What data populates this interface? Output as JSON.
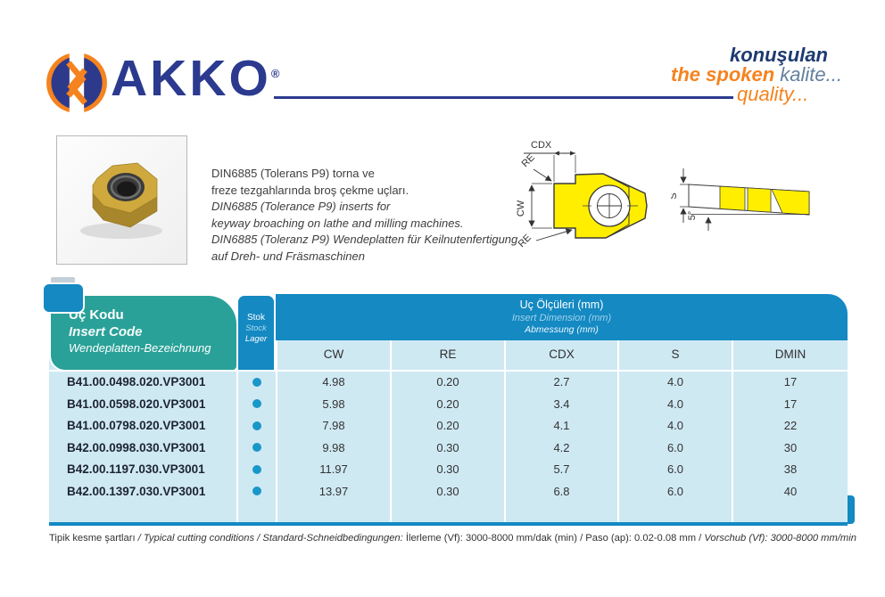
{
  "brand": {
    "name": "AKKO",
    "registered": "®",
    "tagline_tr": "konuşulan",
    "tagline_en_bold": "the spoken",
    "tagline_tr2": "kalite...",
    "tagline_en2": "quality..."
  },
  "description": {
    "lines": [
      {
        "text": "DIN6885 (Tolerans P9) torna ve",
        "style": "regular"
      },
      {
        "text": "freze tezgahlarında broş çekme uçları.",
        "style": "regular"
      },
      {
        "text": "DIN6885 (Tolerance P9) inserts for",
        "style": "italic"
      },
      {
        "text": "keyway broaching on lathe and milling machines.",
        "style": "italic"
      },
      {
        "text": "DIN6885 (Toleranz P9) Wendeplatten für Keilnutenfertigung",
        "style": "italic"
      },
      {
        "text": "auf Dreh- und Fräsmaschinen",
        "style": "italic"
      }
    ]
  },
  "drawings": {
    "front": {
      "cdx": "CDX",
      "re_top": "RE",
      "cw": "CW",
      "re_bottom": "RE"
    },
    "side": {
      "s": "S",
      "angle": "5°"
    }
  },
  "table": {
    "code_header": {
      "tr": "Uç Kodu",
      "en": "Insert Code",
      "de": "Wendeplatten-Bezeichnung"
    },
    "stock_header": {
      "tr": "Stok",
      "en": "Stock",
      "de": "Lager"
    },
    "dimension_header": {
      "tr": "Uç Ölçüleri (mm)",
      "en": "Insert Dimension (mm)",
      "de": "Abmessung (mm)"
    },
    "columns": [
      "CW",
      "RE",
      "CDX",
      "S",
      "DMIN"
    ],
    "rows": [
      {
        "code": "B41.00.0498.020.VP3001",
        "in_stock": true,
        "values": [
          "4.98",
          "0.20",
          "2.7",
          "4.0",
          "17"
        ]
      },
      {
        "code": "B41.00.0598.020.VP3001",
        "in_stock": true,
        "values": [
          "5.98",
          "0.20",
          "3.4",
          "4.0",
          "17"
        ]
      },
      {
        "code": "B41.00.0798.020.VP3001",
        "in_stock": true,
        "values": [
          "7.98",
          "0.20",
          "4.1",
          "4.0",
          "22"
        ]
      },
      {
        "code": "B42.00.0998.030.VP3001",
        "in_stock": true,
        "values": [
          "9.98",
          "0.30",
          "4.2",
          "6.0",
          "30"
        ]
      },
      {
        "code": "B42.00.1197.030.VP3001",
        "in_stock": true,
        "values": [
          "11.97",
          "0.30",
          "5.7",
          "6.0",
          "38"
        ]
      },
      {
        "code": "B42.00.1397.030.VP3001",
        "in_stock": true,
        "values": [
          "13.97",
          "0.30",
          "6.8",
          "6.0",
          "40"
        ]
      }
    ]
  },
  "footer": {
    "segments": [
      {
        "text": "Tipik kesme şartları ",
        "style": "regular"
      },
      {
        "text": "/ Typical cutting conditions / ",
        "style": "italic"
      },
      {
        "text": "Standard-Schneidbedingungen:",
        "style": "italic"
      },
      {
        "text": " İlerleme (Vf): 3000-8000 mm/dak (min)  / Paso (ap): 0.02-0.08 mm / ",
        "style": "regular"
      },
      {
        "text": "Vorschub (Vf): 3000-8000 mm/min",
        "style": "italic"
      }
    ]
  },
  "colors": {
    "navy": "#2b3a8f",
    "dark_navy": "#1d3a70",
    "orange": "#f5831f",
    "teal": "#2aa198",
    "band_blue": "#1489c2",
    "light_blue": "#cfe9f3",
    "dot_blue": "#1a97c9"
  }
}
